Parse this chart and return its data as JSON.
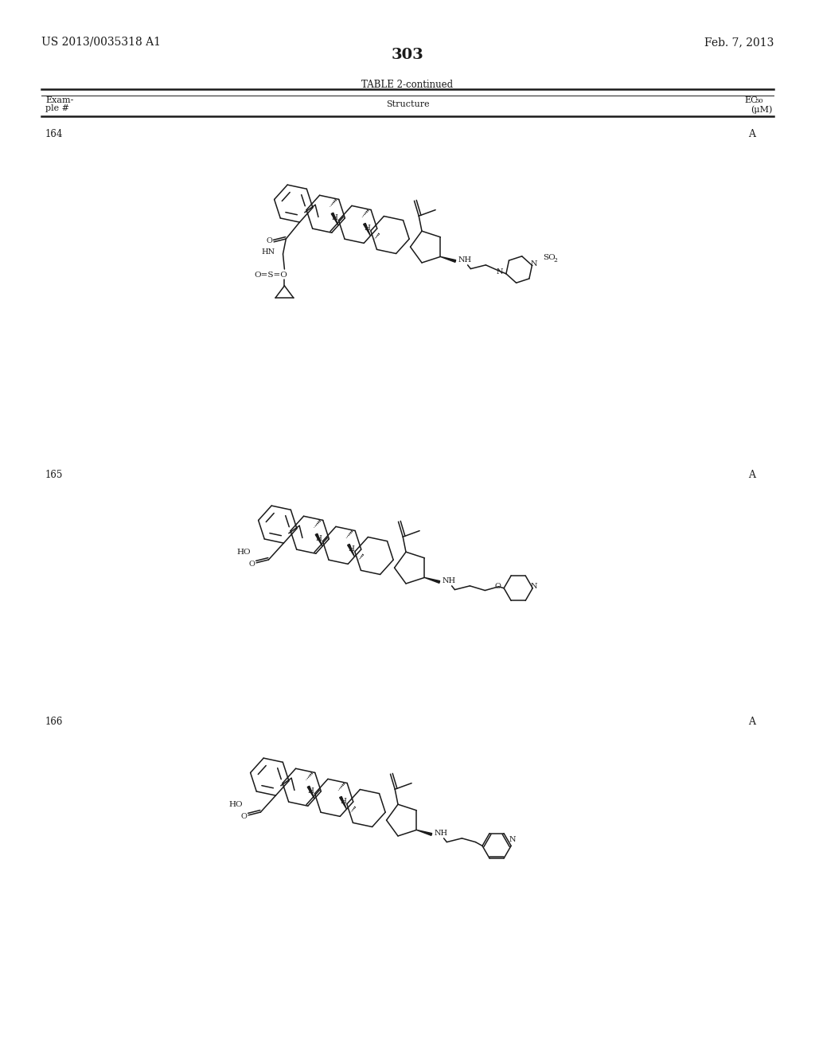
{
  "page_number": "303",
  "patent_number": "US 2013/0035318 A1",
  "patent_date": "Feb. 7, 2013",
  "table_title": "TABLE 2-continued",
  "col1_line1": "Exam-",
  "col1_line2": "ple #",
  "col2": "Structure",
  "col3_line1": "EC",
  "col3_sub": "50",
  "col3_line2": "(μM)",
  "ex164": "164",
  "ex165": "165",
  "ex166": "166",
  "act": "A",
  "bg": "#ffffff",
  "fg": "#1a1a1a"
}
